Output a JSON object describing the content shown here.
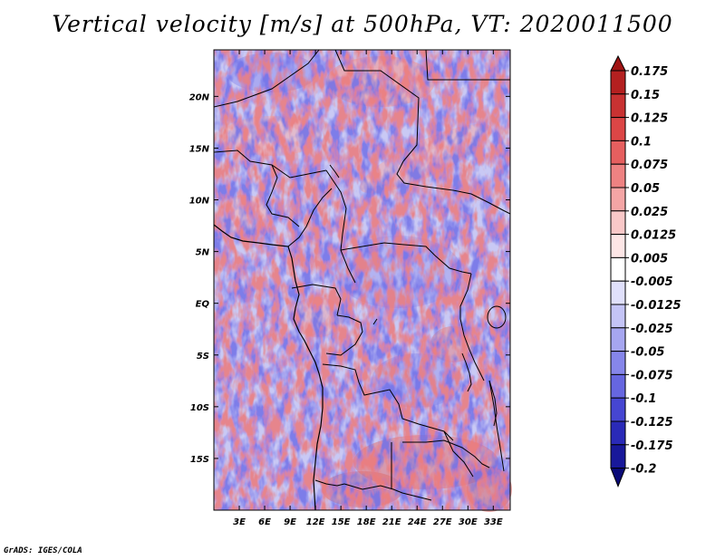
{
  "title": "Vertical velocity [m/s] at 500hPa, VT: 2020011500",
  "credit": "GrADS: IGES/COLA",
  "map": {
    "lat_labels": [
      "20N",
      "15N",
      "10N",
      "5N",
      "EQ",
      "5S",
      "10S",
      "15S"
    ],
    "lat_values": [
      20,
      15,
      10,
      5,
      0,
      -5,
      -10,
      -15
    ],
    "lon_labels": [
      "3E",
      "6E",
      "9E",
      "12E",
      "15E",
      "18E",
      "21E",
      "24E",
      "27E",
      "30E",
      "33E"
    ],
    "lon_values": [
      3,
      6,
      9,
      12,
      15,
      18,
      21,
      24,
      27,
      30,
      33
    ],
    "lon_range": [
      0,
      35
    ],
    "lat_range": [
      -20,
      24.5
    ],
    "field": "vertical velocity",
    "level": "500hPa",
    "valid_time": "2020011500",
    "units": "m/s"
  },
  "colorbar": {
    "labels": [
      "0.175",
      "0.15",
      "0.125",
      "0.1",
      "0.075",
      "0.05",
      "0.025",
      "0.0125",
      "0.005",
      "-0.005",
      "-0.0125",
      "-0.025",
      "-0.05",
      "-0.075",
      "-0.1",
      "-0.125",
      "-0.175",
      "-0.2"
    ],
    "colors": [
      "#a01414",
      "#b42020",
      "#c83232",
      "#dc4646",
      "#e65f5f",
      "#ee8282",
      "#f4a5a5",
      "#f9c8c8",
      "#fde6e6",
      "#ffffff",
      "#e0e0fb",
      "#c4c4f6",
      "#a6a6f0",
      "#8686ea",
      "#6666e0",
      "#4646d2",
      "#2a2ab8",
      "#18189a",
      "#0a0a78"
    ]
  }
}
